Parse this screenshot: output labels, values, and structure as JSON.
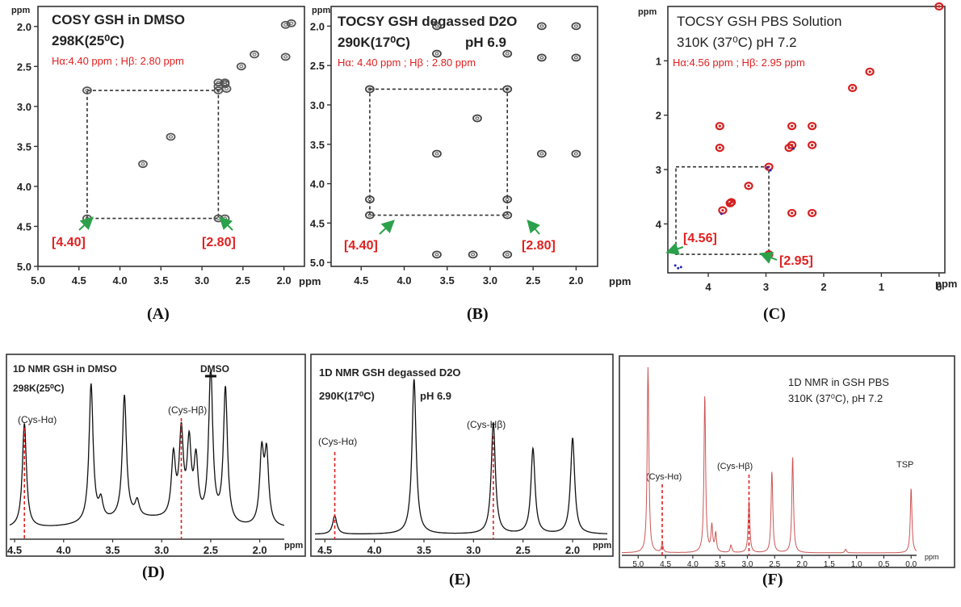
{
  "panels": {
    "A": {
      "label": "(A)",
      "title1": "COSY GSH in DMSO",
      "title2": "298K(25⁰C)",
      "shifts": "Hα:4.40 ppm ; Hβ: 2.80 ppm",
      "ppm_axis": "ppm",
      "ppm_y": "ppm",
      "xticks": [
        "5.0",
        "4.5",
        "4.0",
        "3.5",
        "3.0",
        "2.5",
        "2.0"
      ],
      "yticks": [
        "2.0",
        "2.5",
        "3.0",
        "3.5",
        "4.0",
        "4.5",
        "5.0"
      ],
      "mark_left": "[4.40]",
      "mark_right": "[2.80]"
    },
    "B": {
      "label": "(B)",
      "title1": "TOCSY GSH degassed D2O",
      "title2": "290K(17⁰C)",
      "title3": "pH 6.9",
      "shifts": "Hα: 4.40 ppm ; Hβ : 2.80 ppm",
      "ppm_axis": "ppm",
      "ppm_y": "ppm",
      "xticks": [
        "4.5",
        "4.0",
        "3.5",
        "3.0",
        "2.5",
        "2.0"
      ],
      "yticks": [
        "2.0",
        "2.5",
        "3.0",
        "3.5",
        "4.0",
        "4.5",
        "5.0"
      ],
      "mark_left": "[4.40]",
      "mark_right": "[2.80]"
    },
    "C": {
      "label": "(C)",
      "title1": "TOCSY GSH PBS Solution",
      "title2": "310K (37⁰C) pH 7.2",
      "shifts": "Hα:4.56 ppm ; Hβ: 2.95 ppm",
      "ppm_axis": "ppm",
      "ppm_y": "ppm",
      "xticks": [
        "4",
        "3",
        "2",
        "1",
        "0"
      ],
      "yticks": [
        "1",
        "2",
        "3",
        "4"
      ],
      "mark_left": "[4.56]",
      "mark_right": "[2.95]"
    },
    "D": {
      "label": "(D)",
      "title1": "1D NMR GSH in DMSO",
      "title2": "298K(25⁰C)",
      "solvent": "DMSO",
      "ha": "(Cys-Hα)",
      "hb": "(Cys-Hβ)",
      "ppm_axis": "ppm",
      "xticks": [
        "4.5",
        "4.0",
        "3.5",
        "3.0",
        "2.5",
        "2.0"
      ]
    },
    "E": {
      "label": "(E)",
      "title1": "1D NMR GSH degassed D2O",
      "title2": "290K(17⁰C)",
      "title3": "pH 6.9",
      "ha": "(Cys-Hα)",
      "hb": "(Cys-Hβ)",
      "ppm_axis": "ppm",
      "xticks": [
        "4.5",
        "4.0",
        "3.5",
        "3.0",
        "2.5",
        "2.0"
      ]
    },
    "F": {
      "label": "(F)",
      "title1": "1D NMR in GSH PBS",
      "title2": "310K (37⁰C), pH 7.2",
      "ha": "(Cys-Hα)",
      "hb": "(Cys-Hβ)",
      "ref": "TSP",
      "ppm_axis": "ppm",
      "xticks": [
        "5.0",
        "4.5",
        "4.0",
        "3.5",
        "3.0",
        "2.5",
        "2.0",
        "1.5",
        "1.0",
        "0.5",
        "0.0"
      ]
    }
  },
  "chart_data": [
    {
      "type": "heatmap",
      "panel": "A",
      "title": "COSY GSH in DMSO",
      "xlim": [
        5.0,
        1.75
      ],
      "ylim": [
        1.75,
        5.0
      ],
      "axis_unit": "ppm",
      "peaks": [
        [
          4.4,
          4.4
        ],
        [
          2.8,
          4.4
        ],
        [
          2.72,
          4.4
        ],
        [
          4.4,
          2.8
        ],
        [
          3.72,
          3.72
        ],
        [
          3.38,
          3.38
        ],
        [
          2.8,
          2.8
        ],
        [
          2.72,
          2.72
        ],
        [
          2.8,
          2.7
        ],
        [
          2.72,
          2.7
        ],
        [
          2.52,
          2.5
        ],
        [
          2.36,
          2.35
        ],
        [
          1.98,
          1.98
        ],
        [
          1.91,
          1.96
        ],
        [
          1.98,
          2.38
        ],
        [
          2.8,
          2.75
        ],
        [
          2.7,
          2.78
        ]
      ],
      "box": {
        "x": [
          4.4,
          2.8
        ],
        "y": [
          2.8,
          4.4
        ]
      },
      "colors": {
        "peak": "#555555",
        "box": "#333333",
        "annotation": "#e02020"
      }
    },
    {
      "type": "heatmap",
      "panel": "B",
      "title": "TOCSY GSH degassed D2O",
      "xlim": [
        4.85,
        1.75
      ],
      "ylim": [
        1.75,
        5.05
      ],
      "axis_unit": "ppm",
      "peaks": [
        [
          4.4,
          4.4
        ],
        [
          2.8,
          4.4
        ],
        [
          4.4,
          2.8
        ],
        [
          2.8,
          2.8
        ],
        [
          3.62,
          3.62
        ],
        [
          3.15,
          3.17
        ],
        [
          2.4,
          2.0
        ],
        [
          2.0,
          2.0
        ],
        [
          2.4,
          2.4
        ],
        [
          2.0,
          2.4
        ],
        [
          2.8,
          2.35
        ],
        [
          3.62,
          2.0
        ],
        [
          3.62,
          2.35
        ],
        [
          2.4,
          3.62
        ],
        [
          2.0,
          3.62
        ],
        [
          4.4,
          4.2
        ],
        [
          2.8,
          4.2
        ],
        [
          3.62,
          4.9
        ],
        [
          3.2,
          4.9
        ],
        [
          2.8,
          4.9
        ]
      ],
      "box": {
        "x": [
          4.4,
          2.8
        ],
        "y": [
          2.8,
          4.4
        ]
      },
      "colors": {
        "peak": "#444444",
        "box": "#333333",
        "annotation": "#e02020"
      }
    },
    {
      "type": "heatmap",
      "panel": "C",
      "title": "TOCSY GSH PBS Solution",
      "xlim": [
        4.7,
        -0.1
      ],
      "ylim": [
        0,
        4.9
      ],
      "axis_unit": "ppm",
      "peaks": [
        [
          0.0,
          0.0
        ],
        [
          1.2,
          1.2
        ],
        [
          1.5,
          1.5
        ],
        [
          2.2,
          2.2
        ],
        [
          2.55,
          2.55
        ],
        [
          2.95,
          2.95
        ],
        [
          3.3,
          3.3
        ],
        [
          3.62,
          3.62
        ],
        [
          3.75,
          3.75
        ],
        [
          3.8,
          2.2
        ],
        [
          3.8,
          2.6
        ],
        [
          2.55,
          2.2
        ],
        [
          2.2,
          2.55
        ],
        [
          2.6,
          2.6
        ],
        [
          2.95,
          4.56
        ],
        [
          2.55,
          3.8
        ],
        [
          2.2,
          3.8
        ],
        [
          3.6,
          3.6
        ]
      ],
      "box": {
        "x": [
          4.56,
          2.95
        ],
        "y": [
          2.95,
          4.56
        ]
      },
      "colors": {
        "peak": "#d42020",
        "negative": "#2a2ab0",
        "box": "#333333",
        "annotation": "#e02020"
      }
    },
    {
      "type": "line",
      "panel": "D",
      "title": "1D NMR GSH in DMSO",
      "xlim": [
        4.55,
        1.75
      ],
      "axis_unit": "ppm",
      "peaks": [
        {
          "x": 4.4,
          "y": 0.68
        },
        {
          "x": 3.72,
          "y": 0.9
        },
        {
          "x": 3.62,
          "y": 0.12
        },
        {
          "x": 3.38,
          "y": 0.8
        },
        {
          "x": 3.25,
          "y": 0.1
        },
        {
          "x": 2.88,
          "y": 0.4
        },
        {
          "x": 2.8,
          "y": 0.55
        },
        {
          "x": 2.72,
          "y": 0.48
        },
        {
          "x": 2.65,
          "y": 0.38
        },
        {
          "x": 2.5,
          "y": 1.0
        },
        {
          "x": 2.35,
          "y": 0.88
        },
        {
          "x": 1.98,
          "y": 0.46
        },
        {
          "x": 1.93,
          "y": 0.45
        }
      ],
      "markers": {
        "Cys-Ha": 4.4,
        "Cys-Hb": 2.8
      },
      "colors": {
        "trace": "#111111",
        "marker": "#e02020"
      }
    },
    {
      "type": "line",
      "panel": "E",
      "title": "1D NMR GSH degassed D2O",
      "xlim": [
        4.6,
        1.65
      ],
      "axis_unit": "ppm",
      "peaks": [
        {
          "x": 4.4,
          "y": 0.12
        },
        {
          "x": 3.6,
          "y": 1.0
        },
        {
          "x": 2.8,
          "y": 0.72
        },
        {
          "x": 2.4,
          "y": 0.55
        },
        {
          "x": 2.0,
          "y": 0.62
        }
      ],
      "markers": {
        "Cys-Ha": 4.4,
        "Cys-Hb": 2.8
      },
      "colors": {
        "trace": "#111111",
        "marker": "#e02020"
      }
    },
    {
      "type": "line",
      "panel": "F",
      "title": "1D NMR in GSH PBS",
      "xlim": [
        5.3,
        -0.1
      ],
      "axis_unit": "ppm",
      "peaks": [
        {
          "x": 4.82,
          "y": 1.0
        },
        {
          "x": 4.56,
          "y": 0.05
        },
        {
          "x": 3.78,
          "y": 0.85
        },
        {
          "x": 3.65,
          "y": 0.14
        },
        {
          "x": 3.58,
          "y": 0.1
        },
        {
          "x": 3.3,
          "y": 0.04
        },
        {
          "x": 2.97,
          "y": 0.28
        },
        {
          "x": 2.55,
          "y": 0.44
        },
        {
          "x": 2.17,
          "y": 0.52
        },
        {
          "x": 1.2,
          "y": 0.02
        },
        {
          "x": 0.0,
          "y": 0.35
        }
      ],
      "markers": {
        "Cys-Ha": 4.56,
        "Cys-Hb": 2.97
      },
      "colors": {
        "trace": "#cc5555",
        "marker": "#e02020"
      }
    }
  ]
}
